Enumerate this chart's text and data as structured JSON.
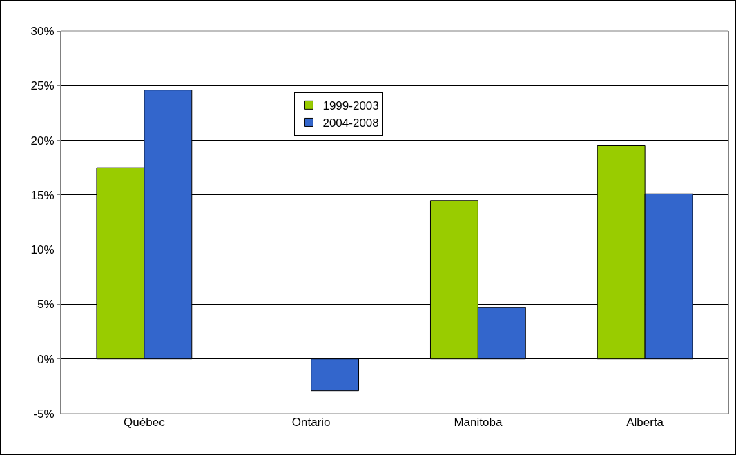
{
  "chart_data": {
    "type": "bar",
    "categories": [
      "Québec",
      "Ontario",
      "Manitoba",
      "Alberta"
    ],
    "series": [
      {
        "name": "1999-2003",
        "color": "#99cc00",
        "values": [
          17.5,
          null,
          14.5,
          19.5
        ]
      },
      {
        "name": "2004-2008",
        "color": "#3366cc",
        "values": [
          24.6,
          -2.9,
          4.7,
          15.1
        ]
      }
    ],
    "ylim": [
      -5,
      30
    ],
    "yticks": [
      {
        "value": -5,
        "label": "-5%"
      },
      {
        "value": 0,
        "label": "0%"
      },
      {
        "value": 5,
        "label": "5%"
      },
      {
        "value": 10,
        "label": "10%"
      },
      {
        "value": 15,
        "label": "15%"
      },
      {
        "value": 20,
        "label": "20%"
      },
      {
        "value": 25,
        "label": "25%"
      },
      {
        "value": 30,
        "label": "30%"
      }
    ],
    "grid": "y",
    "legend": "top"
  }
}
